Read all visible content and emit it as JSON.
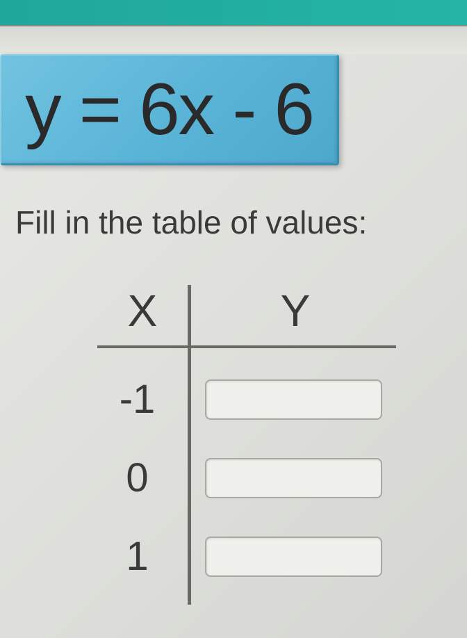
{
  "equation": {
    "text": "y = 6x - 6",
    "box_bg_color": "#5bb5d8",
    "box_border_color": "#3a8fb0",
    "text_color": "#2a2a2a",
    "font_size": 105
  },
  "instruction": "Fill in the table of values:",
  "table": {
    "type": "table",
    "columns": [
      "X",
      "Y"
    ],
    "header_fontsize": 64,
    "cell_fontsize": 58,
    "line_color": "#6a6a65",
    "line_width": 4,
    "rows": [
      {
        "x": "-1",
        "y": ""
      },
      {
        "x": "0",
        "y": ""
      },
      {
        "x": "1",
        "y": ""
      }
    ],
    "input_bg": "#f0f1ec",
    "input_border": "#a8a9a3",
    "input_border_radius": 8
  },
  "colors": {
    "top_bar": "#1fa89a",
    "page_bg": "#e5e6e0",
    "text": "#3a3a3a"
  }
}
